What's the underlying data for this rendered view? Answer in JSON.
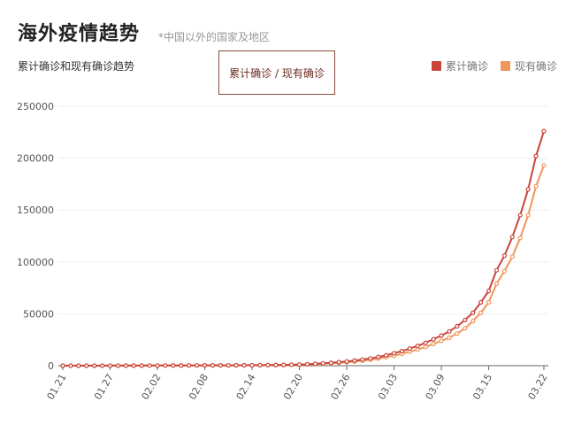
{
  "page": {
    "title": "海外疫情趋势",
    "note": "*中国以外的国家及地区"
  },
  "tooltip": {
    "text": "累计确诊 / 现有确诊"
  },
  "legend": {
    "items": [
      {
        "label": "累计确诊",
        "color": "#c9453a"
      },
      {
        "label": "现有确诊",
        "color": "#f0955c"
      }
    ]
  },
  "chart_data": {
    "type": "line",
    "title": "累计确诊和现有确诊趋势",
    "xlabel": "",
    "ylabel": "",
    "ylim": [
      0,
      250000
    ],
    "yticks": [
      0,
      50000,
      100000,
      150000,
      200000,
      250000
    ],
    "xtick_labels": [
      "01.21",
      "01.27",
      "02.02",
      "02.08",
      "02.14",
      "02.20",
      "02.26",
      "03.03",
      "03.09",
      "03.15",
      "03.22"
    ],
    "grid": true,
    "legend_position": "top-right",
    "start_date": "2020-01-21",
    "x": [
      "01.21",
      "01.22",
      "01.23",
      "01.24",
      "01.25",
      "01.26",
      "01.27",
      "01.28",
      "01.29",
      "01.30",
      "01.31",
      "02.01",
      "02.02",
      "02.03",
      "02.04",
      "02.05",
      "02.06",
      "02.07",
      "02.08",
      "02.09",
      "02.10",
      "02.11",
      "02.12",
      "02.13",
      "02.14",
      "02.15",
      "02.16",
      "02.17",
      "02.18",
      "02.19",
      "02.20",
      "02.21",
      "02.22",
      "02.23",
      "02.24",
      "02.25",
      "02.26",
      "02.27",
      "02.28",
      "02.29",
      "03.01",
      "03.02",
      "03.03",
      "03.04",
      "03.05",
      "03.06",
      "03.07",
      "03.08",
      "03.09",
      "03.10",
      "03.11",
      "03.12",
      "03.13",
      "03.14",
      "03.15",
      "03.16",
      "03.17",
      "03.18",
      "03.19",
      "03.20",
      "03.21",
      "03.22"
    ],
    "series": [
      {
        "name": "累计确诊",
        "color": "#c9453a",
        "values": [
          5,
          7,
          9,
          14,
          20,
          30,
          45,
          60,
          75,
          90,
          110,
          140,
          160,
          180,
          200,
          220,
          250,
          280,
          300,
          320,
          350,
          380,
          410,
          440,
          470,
          520,
          580,
          650,
          750,
          900,
          1100,
          1400,
          1800,
          2300,
          2800,
          3400,
          4100,
          4900,
          5900,
          7000,
          8400,
          10000,
          12000,
          14000,
          16500,
          19000,
          22000,
          25500,
          29000,
          33000,
          38000,
          44000,
          51000,
          61000,
          72000,
          92000,
          106000,
          124000,
          145000,
          170000,
          202000,
          226000
        ]
      },
      {
        "name": "现有确诊",
        "color": "#f0955c",
        "values": [
          5,
          7,
          9,
          14,
          20,
          30,
          45,
          60,
          75,
          90,
          110,
          140,
          160,
          180,
          200,
          220,
          240,
          260,
          280,
          300,
          320,
          340,
          370,
          400,
          430,
          470,
          520,
          580,
          660,
          800,
          950,
          1200,
          1500,
          1900,
          2300,
          2800,
          3300,
          4000,
          4800,
          5700,
          6800,
          8200,
          9600,
          11500,
          13500,
          15500,
          18000,
          21000,
          24000,
          27000,
          31000,
          36000,
          43000,
          51000,
          61000,
          79000,
          91000,
          105000,
          123000,
          145000,
          173000,
          193000
        ]
      }
    ]
  }
}
